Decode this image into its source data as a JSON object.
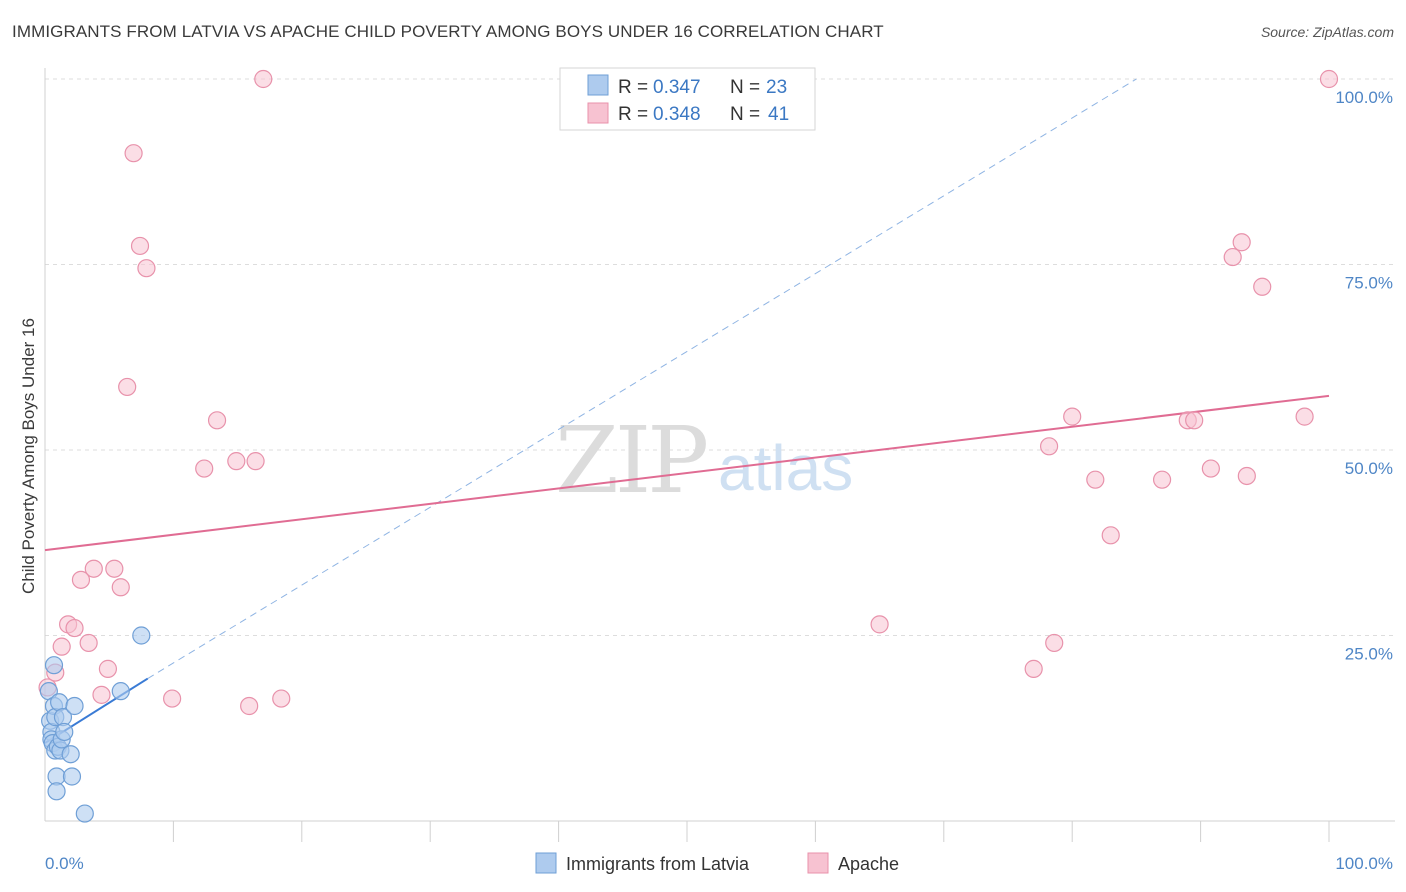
{
  "title": "IMMIGRANTS FROM LATVIA VS APACHE CHILD POVERTY AMONG BOYS UNDER 16 CORRELATION CHART",
  "source": "Source: ZipAtlas.com",
  "watermark": {
    "part1": "ZIP",
    "part2": "atlas"
  },
  "legend_top": [
    {
      "r_label": "R =",
      "r_value": "0.347",
      "n_label": "N =",
      "n_value": "23"
    },
    {
      "r_label": "R =",
      "r_value": "0.348",
      "n_label": "N =",
      "n_value": "41"
    }
  ],
  "legend_bottom": [
    "Immigrants from Latvia",
    "Apache"
  ],
  "colors": {
    "latvia_fill": "#aecbee",
    "latvia_stroke": "#6f9fd6",
    "latvia_line": "#3a7bd5",
    "apache_fill": "#f7c2d1",
    "apache_stroke": "#e892ab",
    "apache_line": "#e06c93",
    "tick_text": "#4f86c6",
    "grid": "#dddddd"
  },
  "chart_data": {
    "type": "scatter",
    "title": "IMMIGRANTS FROM LATVIA VS APACHE CHILD POVERTY AMONG BOYS UNDER 16 CORRELATION CHART",
    "xlabel": "",
    "ylabel": "Child Poverty Among Boys Under 16",
    "xlim": [
      0,
      100
    ],
    "ylim": [
      0,
      100
    ],
    "x_tick_labels": [
      "0.0%",
      "100.0%"
    ],
    "y_ticks": [
      25,
      50,
      75,
      100
    ],
    "y_tick_labels": [
      "25.0%",
      "50.0%",
      "75.0%",
      "100.0%"
    ],
    "grid": "horizontal dashed",
    "legend_position": "top-center",
    "series": [
      {
        "name": "Immigrants from Latvia",
        "r": 0.347,
        "n": 23,
        "points": [
          [
            0.3,
            17.5
          ],
          [
            0.4,
            13.5
          ],
          [
            0.5,
            12.0
          ],
          [
            0.5,
            11.0
          ],
          [
            0.6,
            10.5
          ],
          [
            0.7,
            15.5
          ],
          [
            0.7,
            21.0
          ],
          [
            0.8,
            14.0
          ],
          [
            0.8,
            9.5
          ],
          [
            0.9,
            6.0
          ],
          [
            0.9,
            4.0
          ],
          [
            1.0,
            10.0
          ],
          [
            1.1,
            16.0
          ],
          [
            1.2,
            9.5
          ],
          [
            1.3,
            11.0
          ],
          [
            1.4,
            14.0
          ],
          [
            1.5,
            12.0
          ],
          [
            2.0,
            9.0
          ],
          [
            2.1,
            6.0
          ],
          [
            2.3,
            15.5
          ],
          [
            3.1,
            1.0
          ],
          [
            5.9,
            17.5
          ],
          [
            7.5,
            25.0
          ]
        ],
        "trend": {
          "x": [
            0,
            8
          ],
          "y": [
            10.5,
            19.2
          ],
          "style": "solid"
        },
        "trend_extension": {
          "x": [
            8,
            85
          ],
          "y": [
            19.2,
            100
          ],
          "style": "dashed"
        }
      },
      {
        "name": "Apache",
        "r": 0.348,
        "n": 41,
        "points": [
          [
            0.2,
            18.0
          ],
          [
            0.8,
            20.0
          ],
          [
            1.3,
            23.5
          ],
          [
            1.8,
            26.5
          ],
          [
            2.3,
            26.0
          ],
          [
            2.8,
            32.5
          ],
          [
            3.4,
            24.0
          ],
          [
            3.8,
            34.0
          ],
          [
            4.4,
            17.0
          ],
          [
            4.9,
            20.5
          ],
          [
            5.4,
            34.0
          ],
          [
            5.9,
            31.5
          ],
          [
            6.4,
            58.5
          ],
          [
            6.9,
            90.0
          ],
          [
            7.4,
            77.5
          ],
          [
            7.9,
            74.5
          ],
          [
            9.9,
            16.5
          ],
          [
            12.4,
            47.5
          ],
          [
            13.4,
            54.0
          ],
          [
            14.9,
            48.5
          ],
          [
            15.9,
            15.5
          ],
          [
            16.4,
            48.5
          ],
          [
            17.0,
            100.0
          ],
          [
            18.4,
            16.5
          ],
          [
            65.0,
            26.5
          ],
          [
            77.0,
            20.5
          ],
          [
            78.2,
            50.5
          ],
          [
            78.6,
            24.0
          ],
          [
            80.0,
            54.5
          ],
          [
            81.8,
            46.0
          ],
          [
            83.0,
            38.5
          ],
          [
            87.0,
            46.0
          ],
          [
            89.0,
            54.0
          ],
          [
            89.5,
            54.0
          ],
          [
            90.8,
            47.5
          ],
          [
            92.5,
            76.0
          ],
          [
            93.2,
            78.0
          ],
          [
            93.6,
            46.5
          ],
          [
            94.8,
            72.0
          ],
          [
            98.1,
            54.5
          ],
          [
            100.0,
            100.0
          ]
        ],
        "trend": {
          "x": [
            0,
            100
          ],
          "y": [
            36.5,
            57.3
          ],
          "style": "solid"
        }
      }
    ]
  }
}
